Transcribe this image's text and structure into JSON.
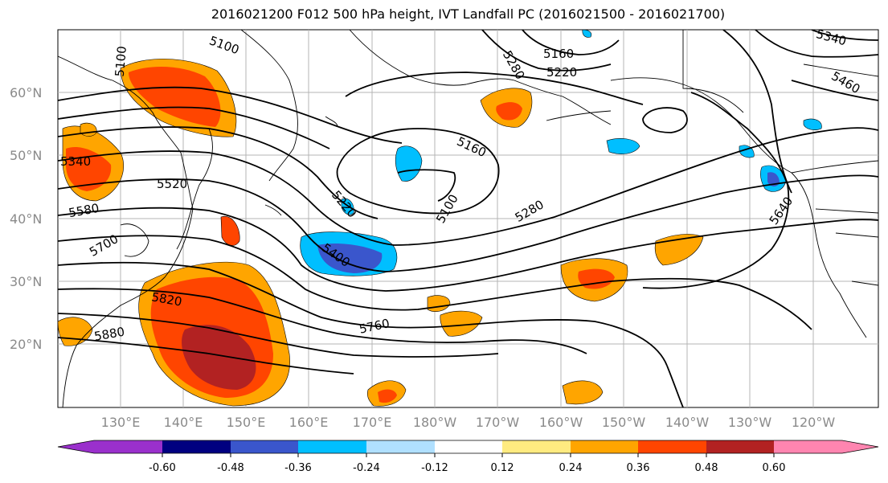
{
  "title": "2016021200 F012 500 hPa height, IVT Landfall PC (2016021500 - 2016021700)",
  "map": {
    "lat_labels": [
      "60°N",
      "50°N",
      "40°N",
      "30°N",
      "20°N"
    ],
    "lon_labels": [
      "130°E",
      "140°E",
      "150°E",
      "160°E",
      "170°E",
      "180°W",
      "170°W",
      "160°W",
      "150°W",
      "140°W",
      "130°W",
      "120°W"
    ],
    "contour_labels": [
      "5100",
      "5100",
      "5160",
      "5220",
      "5280",
      "5340",
      "5460",
      "5340",
      "5520",
      "5580",
      "5700",
      "5160",
      "5100",
      "5220",
      "5280",
      "5400",
      "5640",
      "5820",
      "5880",
      "5760"
    ]
  },
  "colorbar": {
    "colors": [
      "#9a30cc",
      "#000080",
      "#3a56cc",
      "#00bfff",
      "#b0e0ff",
      "#ffffff",
      "#ffeb80",
      "#ffa500",
      "#ff4500",
      "#b22222",
      "#ff85b0"
    ],
    "tick_labels": [
      "-0.60",
      "-0.48",
      "-0.36",
      "-0.24",
      "-0.12",
      "0.12",
      "0.24",
      "0.36",
      "0.48",
      "0.60"
    ]
  }
}
